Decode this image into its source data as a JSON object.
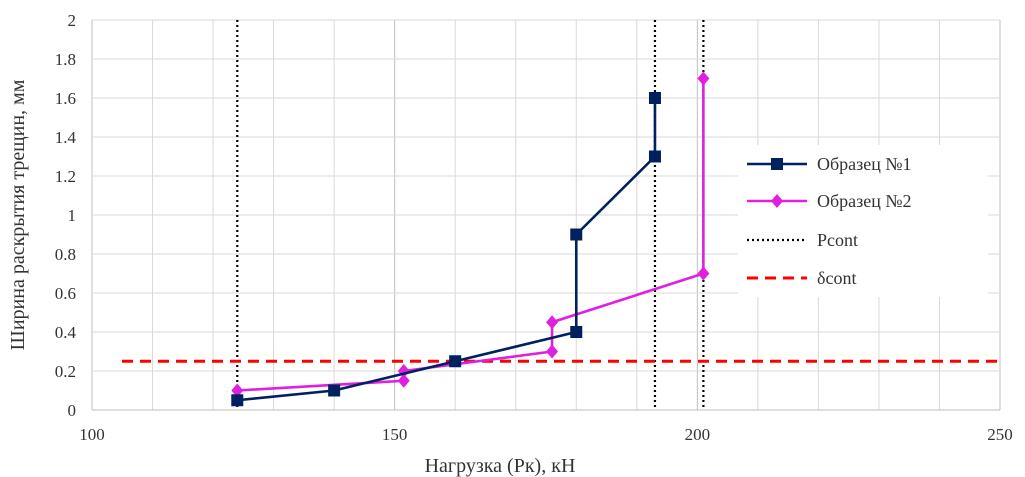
{
  "chart_data": {
    "type": "scatter",
    "xlabel": "Нагрузка (Рк), кН",
    "ylabel": "Ширина раскрытия трещин, мм",
    "xlim": [
      100,
      250
    ],
    "ylim": [
      0,
      2
    ],
    "x_ticks": [
      100,
      150,
      200,
      250
    ],
    "y_ticks": [
      "0",
      "0.2",
      "0.4",
      "0.6",
      "0.8",
      "1",
      "1.2",
      "1.4",
      "1.6",
      "1.8",
      "2"
    ],
    "grid": true,
    "legend_position": "right",
    "series": [
      {
        "name": "Образец №1",
        "color": "#002060",
        "marker": "square",
        "line_style": "solid",
        "x": [
          124,
          140,
          160,
          180,
          180,
          193,
          193
        ],
        "y": [
          0.05,
          0.1,
          0.25,
          0.4,
          0.9,
          1.3,
          1.6
        ]
      },
      {
        "name": "Образец №2",
        "color": "#e020e0",
        "marker": "diamond",
        "line_style": "solid",
        "x": [
          124,
          151.5,
          151.5,
          176,
          176,
          201,
          201
        ],
        "y": [
          0.1,
          0.15,
          0.2,
          0.3,
          0.45,
          0.7,
          1.7
        ]
      },
      {
        "name": "Pcont",
        "color": "#000000",
        "line_style": "dotted",
        "vertical_lines_x": [
          124,
          193,
          201
        ]
      },
      {
        "name": "δcont",
        "color": "#ff0000",
        "line_style": "dashed",
        "horizontal_line_y": 0.25
      }
    ]
  }
}
